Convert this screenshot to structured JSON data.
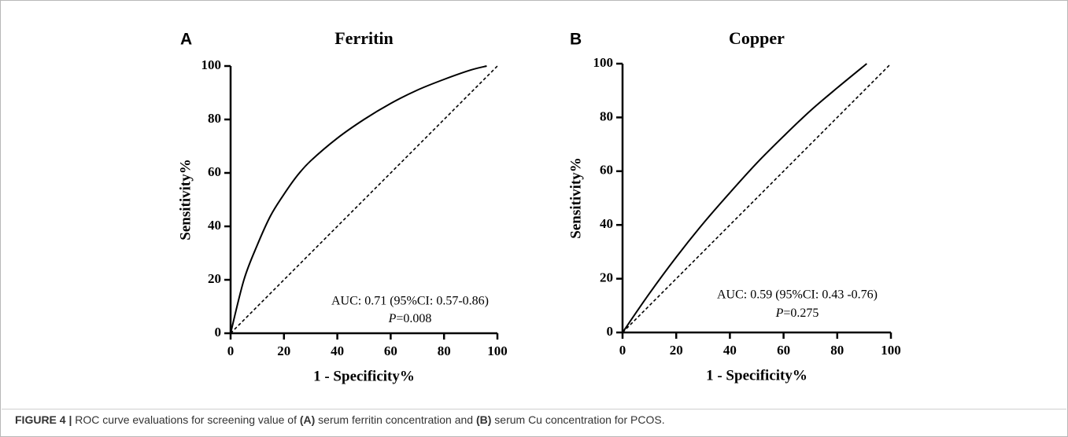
{
  "colors": {
    "curve": "#000000",
    "reference": "#000000",
    "caption_text": "#333333",
    "frame": "#b8b8b8"
  },
  "chart_data": [
    {
      "type": "line",
      "panel_letter": "A",
      "title": "Ferritin",
      "xlabel": "1 - Specificity%",
      "ylabel": "Sensitivity%",
      "xlim": [
        0,
        100
      ],
      "ylim": [
        0,
        100
      ],
      "xticks": [
        "0",
        "20",
        "40",
        "60",
        "80",
        "100"
      ],
      "yticks": [
        "0",
        "20",
        "40",
        "60",
        "80",
        "100"
      ],
      "series": [
        {
          "style": "solid",
          "x": [
            0,
            5,
            10,
            15,
            20,
            25,
            30,
            40,
            50,
            60,
            70,
            80,
            90,
            96
          ],
          "y": [
            0,
            20,
            33,
            44,
            52,
            59,
            64.5,
            73,
            80,
            86,
            91,
            95,
            98.5,
            100
          ]
        },
        {
          "style": "dashed",
          "x": [
            0,
            100
          ],
          "y": [
            0,
            100
          ]
        }
      ],
      "annotation": {
        "line1": "AUC: 0.71 (95%CI: 0.57-0.86)",
        "p_label": "P",
        "p_value": "=0.008"
      },
      "grid": false,
      "legend": "none"
    },
    {
      "type": "line",
      "panel_letter": "B",
      "title": "Copper",
      "xlabel": "1 - Specificity%",
      "ylabel": "Sensitivity%",
      "xlim": [
        0,
        100
      ],
      "ylim": [
        0,
        100
      ],
      "xticks": [
        "0",
        "20",
        "40",
        "60",
        "80",
        "100"
      ],
      "yticks": [
        "0",
        "20",
        "40",
        "60",
        "80",
        "100"
      ],
      "series": [
        {
          "style": "solid",
          "x": [
            0,
            10,
            20,
            30,
            40,
            50,
            60,
            70,
            80,
            91
          ],
          "y": [
            0,
            14.5,
            28,
            40.5,
            52,
            63,
            73,
            82.5,
            91,
            100
          ]
        },
        {
          "style": "dashed",
          "x": [
            0,
            100
          ],
          "y": [
            0,
            100
          ]
        }
      ],
      "annotation": {
        "line1": "AUC: 0.59 (95%CI: 0.43 -0.76)",
        "p_label": "P",
        "p_value": "=0.275"
      },
      "grid": false,
      "legend": "none"
    }
  ],
  "caption": {
    "figure_label": "FIGURE 4 |",
    "text_1": " ROC curve evaluations for screening value of ",
    "ref_a": "(A)",
    "text_2": " serum ferritin concentration and ",
    "ref_b": "(B)",
    "text_3": " serum Cu concentration for PCOS."
  }
}
